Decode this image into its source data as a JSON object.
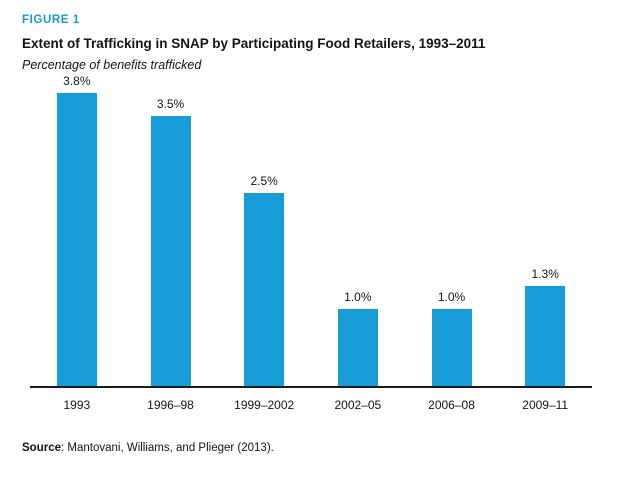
{
  "figure_label": "FIGURE 1",
  "title": "Extent of Trafficking in SNAP by Participating Food Retailers, 1993–2011",
  "subtitle": "Percentage of benefits trafficked",
  "source": {
    "label": "Source",
    "text": ": Mantovani, Williams, and Plieger (2013)."
  },
  "colors": {
    "bar": "#189cd8",
    "accent": "#1899ce",
    "text": "#141414",
    "axis": "#1a1a1a"
  },
  "chart_data": {
    "type": "bar",
    "categories": [
      "1993",
      "1996–98",
      "1999–2002",
      "2002–05",
      "2006–08",
      "2009–11"
    ],
    "values": [
      3.8,
      3.5,
      2.5,
      1.0,
      1.0,
      1.3
    ],
    "value_labels": [
      "3.8%",
      "3.5%",
      "2.5%",
      "1.0%",
      "1.0%",
      "1.3%"
    ],
    "title": "Extent of Trafficking in SNAP by Participating Food Retailers, 1993–2011",
    "xlabel": "",
    "ylabel": "Percentage of benefits trafficked",
    "ylim": [
      0,
      4
    ],
    "grid": false,
    "legend": "none",
    "data_labels_position": "above-bar"
  }
}
